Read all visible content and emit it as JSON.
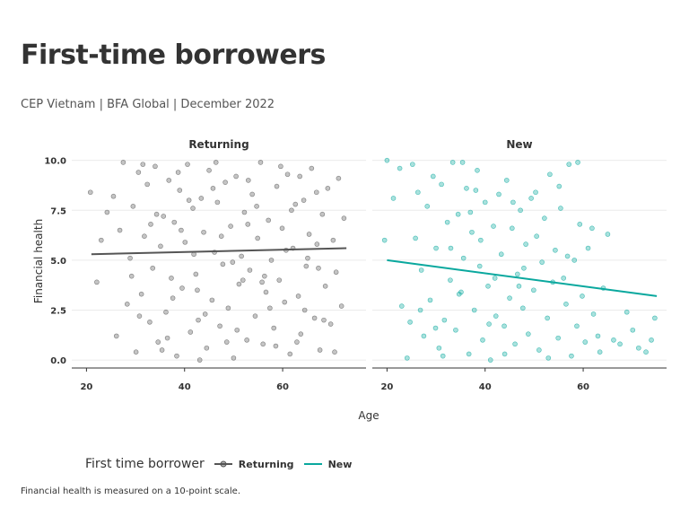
{
  "title": "First-time borrowers",
  "subtitle": "CEP Vietnam | BFA Global | December 2022",
  "caption": "Financial health is measured on a 10-point scale.",
  "legend": {
    "title": "First time borrower",
    "items": [
      {
        "label": "Returning",
        "color": "#555555"
      },
      {
        "label": "New",
        "color": "#0aa89e"
      }
    ]
  },
  "colors": {
    "returning": "#555555",
    "new": "#0aa89e",
    "grid": "#ebebeb",
    "axis": "#333333"
  },
  "chart_data": {
    "type": "scatter",
    "xlabel": "Age",
    "ylabel": "Financial health",
    "xlim": [
      17,
      77
    ],
    "ylim": [
      -0.4,
      10.3
    ],
    "x_ticks": [
      20,
      40,
      60
    ],
    "x_tick_labels": [
      "20",
      "40",
      "60"
    ],
    "y_ticks": [
      0,
      2.5,
      5,
      7.5,
      10
    ],
    "y_tick_labels": [
      "0.0",
      "2.5",
      "5.0",
      "7.5",
      "10.0"
    ],
    "grid": "horizontal",
    "legend_position": "bottom-left",
    "panels": [
      {
        "name": "Returning",
        "color": "#555555",
        "trend": {
          "x": [
            21,
            73
          ],
          "y": [
            5.3,
            5.6
          ]
        },
        "points": [
          [
            20.8,
            8.4
          ],
          [
            22.1,
            3.9
          ],
          [
            23.0,
            6.0
          ],
          [
            24.2,
            7.4
          ],
          [
            25.5,
            8.2
          ],
          [
            26.1,
            1.2
          ],
          [
            26.8,
            6.5
          ],
          [
            27.5,
            9.9
          ],
          [
            28.3,
            2.8
          ],
          [
            28.9,
            5.1
          ],
          [
            29.5,
            7.7
          ],
          [
            30.1,
            0.4
          ],
          [
            30.6,
            9.4
          ],
          [
            31.2,
            3.3
          ],
          [
            31.8,
            6.2
          ],
          [
            32.4,
            8.8
          ],
          [
            32.9,
            1.9
          ],
          [
            33.5,
            4.6
          ],
          [
            34.0,
            9.7
          ],
          [
            34.6,
            0.9
          ],
          [
            35.1,
            5.7
          ],
          [
            35.7,
            7.2
          ],
          [
            36.2,
            2.4
          ],
          [
            36.8,
            9.0
          ],
          [
            37.3,
            4.1
          ],
          [
            37.9,
            6.9
          ],
          [
            38.4,
            0.2
          ],
          [
            39.0,
            8.5
          ],
          [
            39.5,
            3.6
          ],
          [
            40.1,
            5.9
          ],
          [
            40.6,
            9.8
          ],
          [
            41.2,
            1.4
          ],
          [
            41.7,
            7.6
          ],
          [
            42.3,
            4.3
          ],
          [
            42.8,
            2.0
          ],
          [
            43.4,
            8.1
          ],
          [
            43.9,
            6.4
          ],
          [
            44.5,
            0.6
          ],
          [
            45.0,
            9.5
          ],
          [
            45.6,
            3.0
          ],
          [
            46.1,
            5.4
          ],
          [
            46.7,
            7.9
          ],
          [
            47.2,
            1.7
          ],
          [
            47.8,
            4.8
          ],
          [
            48.3,
            8.9
          ],
          [
            48.9,
            2.6
          ],
          [
            49.4,
            6.7
          ],
          [
            50.0,
            0.1
          ],
          [
            50.5,
            9.2
          ],
          [
            51.1,
            3.8
          ],
          [
            51.6,
            5.2
          ],
          [
            52.2,
            7.4
          ],
          [
            52.7,
            1.0
          ],
          [
            53.3,
            4.5
          ],
          [
            53.8,
            8.3
          ],
          [
            54.4,
            2.2
          ],
          [
            54.9,
            6.1
          ],
          [
            55.5,
            9.9
          ],
          [
            56.0,
            0.8
          ],
          [
            56.6,
            3.4
          ],
          [
            57.1,
            7.0
          ],
          [
            57.7,
            5.0
          ],
          [
            58.2,
            1.6
          ],
          [
            58.8,
            8.7
          ],
          [
            59.3,
            4.0
          ],
          [
            59.9,
            6.6
          ],
          [
            60.4,
            2.9
          ],
          [
            61.0,
            9.3
          ],
          [
            61.5,
            0.3
          ],
          [
            62.1,
            5.6
          ],
          [
            62.6,
            7.8
          ],
          [
            63.2,
            3.2
          ],
          [
            63.7,
            1.3
          ],
          [
            64.3,
            8.0
          ],
          [
            64.8,
            4.7
          ],
          [
            65.4,
            6.3
          ],
          [
            65.9,
            9.6
          ],
          [
            66.5,
            2.1
          ],
          [
            67.0,
            5.8
          ],
          [
            67.6,
            0.5
          ],
          [
            68.1,
            7.3
          ],
          [
            68.7,
            3.7
          ],
          [
            69.2,
            8.6
          ],
          [
            69.8,
            1.8
          ],
          [
            70.3,
            6.0
          ],
          [
            70.9,
            4.4
          ],
          [
            71.4,
            9.1
          ],
          [
            72.0,
            2.7
          ],
          [
            72.5,
            7.1
          ],
          [
            29.2,
            4.2
          ],
          [
            33.1,
            6.8
          ],
          [
            36.5,
            1.1
          ],
          [
            38.7,
            9.4
          ],
          [
            41.9,
            5.3
          ],
          [
            44.2,
            2.3
          ],
          [
            47.5,
            6.2
          ],
          [
            49.8,
            4.9
          ],
          [
            53.0,
            9.0
          ],
          [
            55.8,
            3.9
          ],
          [
            58.6,
            0.7
          ],
          [
            61.8,
            7.5
          ],
          [
            64.5,
            2.5
          ],
          [
            66.9,
            8.4
          ],
          [
            30.8,
            2.2
          ],
          [
            34.3,
            7.3
          ],
          [
            37.6,
            3.1
          ],
          [
            40.9,
            8.0
          ],
          [
            43.1,
            0.0
          ],
          [
            46.4,
            9.9
          ],
          [
            50.7,
            1.5
          ],
          [
            52.9,
            6.8
          ],
          [
            56.3,
            4.2
          ],
          [
            59.6,
            9.7
          ],
          [
            62.9,
            0.9
          ],
          [
            65.1,
            5.1
          ],
          [
            68.4,
            2.0
          ],
          [
            31.5,
            9.8
          ],
          [
            35.4,
            0.5
          ],
          [
            39.3,
            6.5
          ],
          [
            42.6,
            3.5
          ],
          [
            45.8,
            8.6
          ],
          [
            48.6,
            0.9
          ],
          [
            51.9,
            4.0
          ],
          [
            54.7,
            7.7
          ],
          [
            57.4,
            2.6
          ],
          [
            60.7,
            5.5
          ],
          [
            63.5,
            9.2
          ],
          [
            67.3,
            4.6
          ],
          [
            70.6,
            0.4
          ]
        ]
      },
      {
        "name": "New",
        "color": "#0aa89e",
        "trend": {
          "x": [
            20,
            75
          ],
          "y": [
            5.0,
            3.2
          ]
        },
        "points": [
          [
            19.5,
            6.0
          ],
          [
            20.0,
            10.0
          ],
          [
            21.3,
            8.1
          ],
          [
            22.6,
            9.6
          ],
          [
            23.0,
            2.7
          ],
          [
            24.1,
            0.1
          ],
          [
            25.2,
            9.8
          ],
          [
            25.8,
            6.1
          ],
          [
            26.3,
            8.4
          ],
          [
            27.0,
            4.5
          ],
          [
            27.5,
            1.2
          ],
          [
            28.2,
            7.7
          ],
          [
            28.8,
            3.0
          ],
          [
            29.4,
            9.2
          ],
          [
            30.0,
            5.6
          ],
          [
            30.6,
            0.6
          ],
          [
            31.1,
            8.8
          ],
          [
            31.7,
            2.0
          ],
          [
            32.3,
            6.9
          ],
          [
            32.9,
            4.0
          ],
          [
            33.4,
            9.9
          ],
          [
            34.0,
            1.5
          ],
          [
            34.5,
            7.3
          ],
          [
            35.1,
            3.4
          ],
          [
            35.6,
            5.1
          ],
          [
            36.2,
            8.6
          ],
          [
            36.7,
            0.3
          ],
          [
            37.3,
            6.4
          ],
          [
            37.8,
            2.5
          ],
          [
            38.4,
            9.5
          ],
          [
            38.9,
            4.7
          ],
          [
            39.5,
            1.0
          ],
          [
            40.0,
            7.9
          ],
          [
            40.6,
            3.7
          ],
          [
            41.1,
            0.0
          ],
          [
            41.7,
            6.7
          ],
          [
            42.2,
            2.2
          ],
          [
            42.8,
            8.3
          ],
          [
            43.3,
            5.3
          ],
          [
            43.9,
            1.7
          ],
          [
            44.4,
            9.0
          ],
          [
            45.0,
            3.1
          ],
          [
            45.5,
            6.6
          ],
          [
            46.1,
            0.8
          ],
          [
            46.6,
            4.3
          ],
          [
            47.2,
            7.5
          ],
          [
            47.7,
            2.6
          ],
          [
            48.3,
            5.8
          ],
          [
            48.8,
            1.3
          ],
          [
            49.4,
            8.1
          ],
          [
            49.9,
            3.5
          ],
          [
            50.5,
            6.2
          ],
          [
            51.0,
            0.5
          ],
          [
            51.6,
            4.9
          ],
          [
            52.1,
            7.1
          ],
          [
            52.7,
            2.1
          ],
          [
            53.2,
            9.3
          ],
          [
            53.8,
            3.9
          ],
          [
            54.3,
            5.5
          ],
          [
            54.9,
            1.1
          ],
          [
            55.4,
            7.6
          ],
          [
            56.0,
            4.1
          ],
          [
            56.5,
            2.8
          ],
          [
            57.1,
            9.8
          ],
          [
            57.6,
            0.2
          ],
          [
            58.2,
            5.0
          ],
          [
            58.7,
            1.7
          ],
          [
            59.3,
            6.8
          ],
          [
            59.8,
            3.2
          ],
          [
            60.4,
            0.9
          ],
          [
            61.0,
            5.6
          ],
          [
            62.1,
            2.3
          ],
          [
            63.0,
            1.2
          ],
          [
            64.1,
            3.6
          ],
          [
            65.0,
            6.3
          ],
          [
            66.2,
            1.0
          ],
          [
            67.5,
            0.8
          ],
          [
            68.9,
            2.4
          ],
          [
            70.1,
            1.5
          ],
          [
            71.3,
            0.6
          ],
          [
            72.8,
            0.4
          ],
          [
            73.9,
            1.0
          ],
          [
            74.6,
            2.1
          ],
          [
            35.4,
            9.9
          ],
          [
            37.0,
            7.4
          ],
          [
            39.1,
            6.0
          ],
          [
            45.7,
            7.9
          ],
          [
            50.3,
            8.4
          ],
          [
            55.1,
            8.7
          ],
          [
            58.9,
            9.9
          ],
          [
            61.8,
            6.6
          ],
          [
            63.4,
            0.4
          ],
          [
            44.0,
            0.3
          ],
          [
            34.7,
            3.3
          ],
          [
            29.9,
            1.6
          ],
          [
            26.8,
            2.5
          ],
          [
            47.9,
            4.6
          ],
          [
            52.9,
            0.1
          ],
          [
            56.8,
            5.2
          ],
          [
            42.0,
            4.1
          ],
          [
            38.1,
            8.5
          ],
          [
            33.0,
            5.6
          ],
          [
            31.4,
            0.2
          ],
          [
            40.8,
            1.8
          ],
          [
            46.9,
            3.7
          ],
          [
            24.7,
            1.9
          ]
        ]
      }
    ]
  }
}
